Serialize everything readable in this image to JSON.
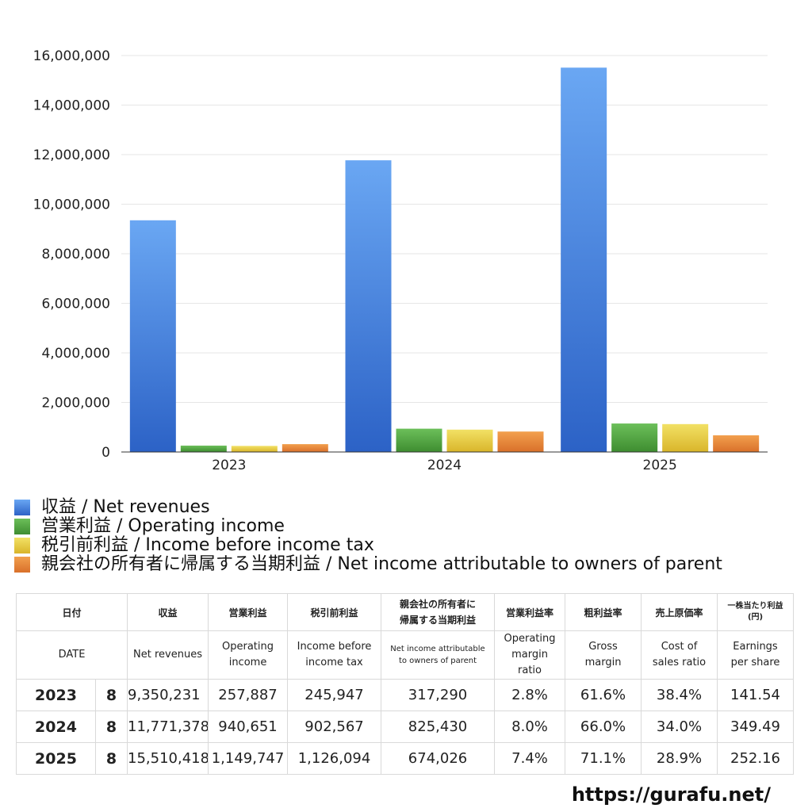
{
  "chart_data": {
    "type": "bar",
    "categories": [
      "2023",
      "2024",
      "2025"
    ],
    "series": [
      {
        "name": "収益 / Net revenues",
        "values": [
          9350231,
          11771378,
          15510418
        ]
      },
      {
        "name": "営業利益 / Operating income",
        "values": [
          257887,
          940651,
          1149747
        ]
      },
      {
        "name": "税引前利益 / Income before income tax",
        "values": [
          245947,
          902567,
          1126094
        ]
      },
      {
        "name": "親会社の所有者に帰属する当期利益 / Net income attributable to owners of parent",
        "values": [
          317290,
          825430,
          674026
        ]
      }
    ],
    "yticks": [
      "0",
      "2,000,000",
      "4,000,000",
      "6,000,000",
      "8,000,000",
      "10,000,000",
      "12,000,000",
      "14,000,000",
      "16,000,000"
    ],
    "ylim": [
      0,
      16000000
    ],
    "grid": true,
    "legend_position": "bottom",
    "colors": {
      "net_revenues": [
        "#6aa7f3",
        "#2c62c6"
      ],
      "operating_income": [
        "#6cbf5a",
        "#3e8d30"
      ],
      "income_before_tax": [
        "#f2e165",
        "#d9b52a"
      ],
      "net_income": [
        "#f2a04e",
        "#d9702a"
      ]
    }
  },
  "table": {
    "header_jp": {
      "date": "日付",
      "revenues": "収益",
      "operating_income": "営業利益",
      "income_before_tax": "税引前利益",
      "net_income_line1": "親会社の所有者に",
      "net_income_line2": "帰属する当期利益",
      "operating_margin": "営業利益率",
      "gross_margin": "粗利益率",
      "cost_ratio": "売上原価率",
      "eps_line1": "一株当たり利益",
      "eps_line2": "(円)"
    },
    "header_en": {
      "date": "DATE",
      "revenues": "Net revenues",
      "operating_income_line1": "Operating",
      "operating_income_line2": "income",
      "income_before_tax_line1": "Income before",
      "income_before_tax_line2": "income tax",
      "net_income_line1": "Net income attributable",
      "net_income_line2": "to owners of parent",
      "operating_margin_line1": "Operating",
      "operating_margin_line2": "margin",
      "operating_margin_line3": "ratio",
      "gross_margin_line1": "Gross",
      "gross_margin_line2": "margin",
      "cost_ratio_line1": "Cost of",
      "cost_ratio_line2": "sales ratio",
      "eps_line1": "Earnings",
      "eps_line2": "per share"
    },
    "rows": [
      {
        "year": "2023",
        "month": "8",
        "revenues": "9,350,231",
        "operating_income": "257,887",
        "income_before_tax": "245,947",
        "net_income": "317,290",
        "operating_margin": "2.8%",
        "gross_margin": "61.6%",
        "cost_ratio": "38.4%",
        "eps": "141.54"
      },
      {
        "year": "2024",
        "month": "8",
        "revenues": "11,771,378",
        "operating_income": "940,651",
        "income_before_tax": "902,567",
        "net_income": "825,430",
        "operating_margin": "8.0%",
        "gross_margin": "66.0%",
        "cost_ratio": "34.0%",
        "eps": "349.49"
      },
      {
        "year": "2025",
        "month": "8",
        "revenues": "15,510,418",
        "operating_income": "1,149,747",
        "income_before_tax": "1,126,094",
        "net_income": "674,026",
        "operating_margin": "7.4%",
        "gross_margin": "71.1%",
        "cost_ratio": "28.9%",
        "eps": "252.16"
      }
    ]
  },
  "footer": {
    "site": "https://gurafu.net/"
  }
}
